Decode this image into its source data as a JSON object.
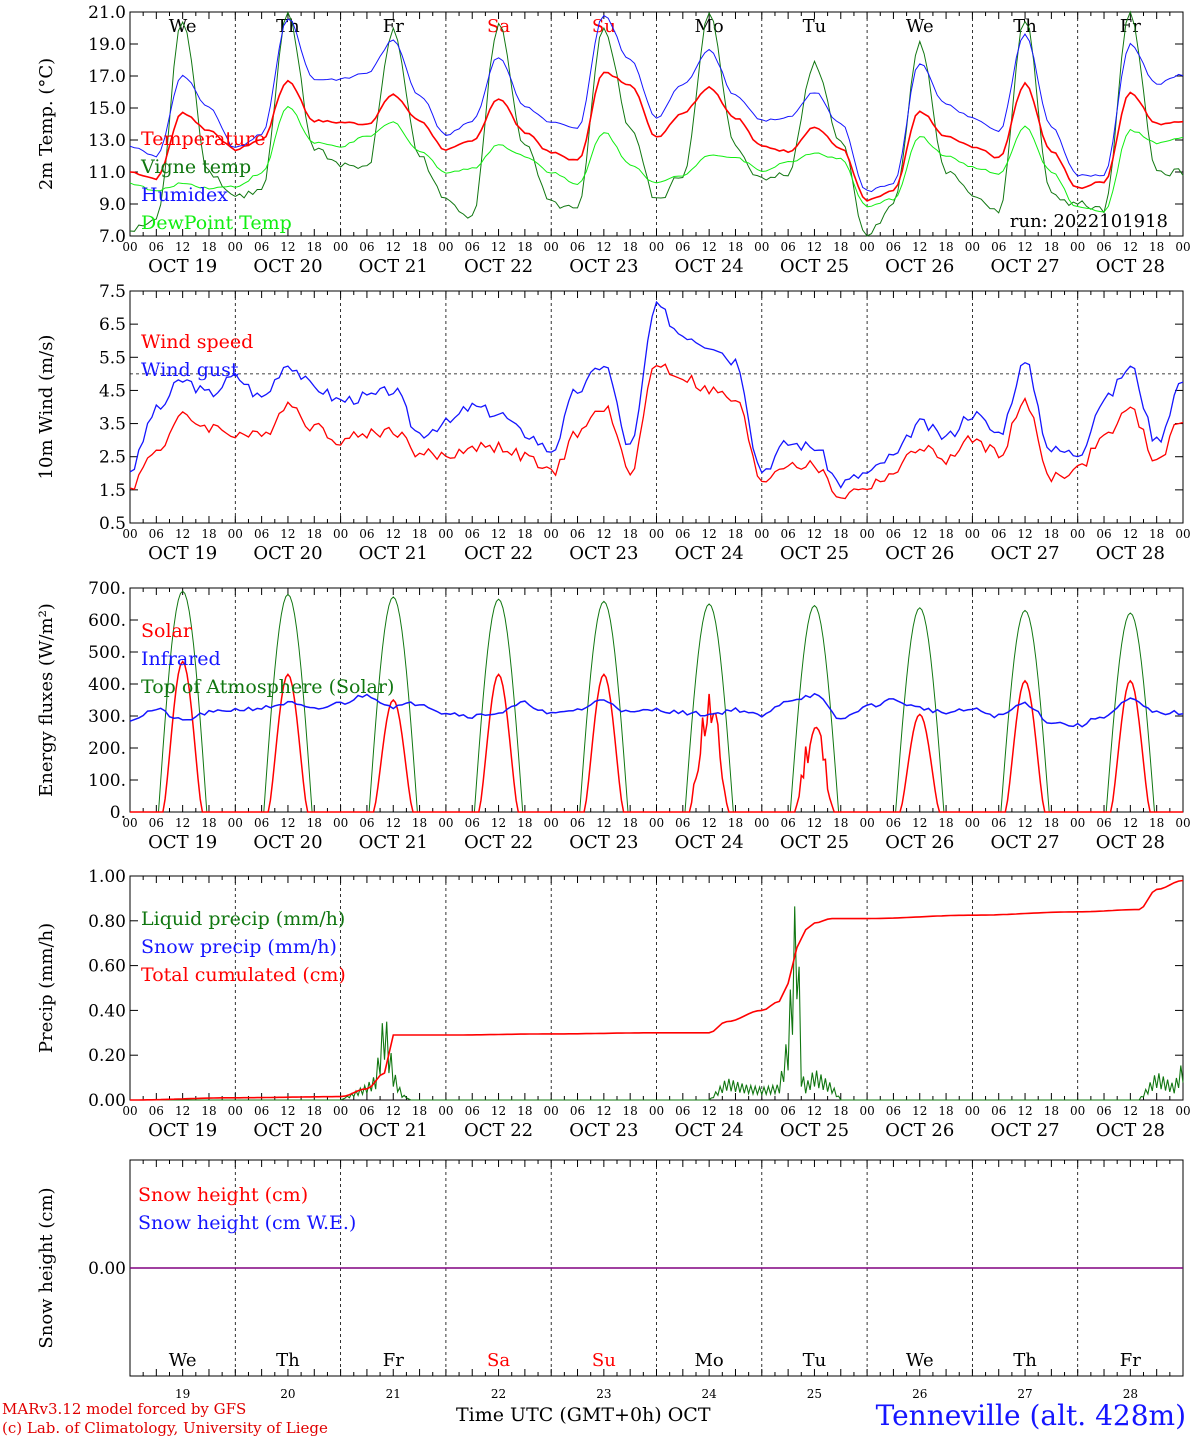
{
  "days": {
    "names": [
      "We",
      "Th",
      "Fr",
      "Sa",
      "Su",
      "Mo",
      "Tu",
      "We",
      "Th",
      "Fr"
    ],
    "weekend_flags": [
      false,
      false,
      false,
      true,
      true,
      false,
      false,
      false,
      false,
      false
    ],
    "dates": [
      "OCT 19",
      "OCT 20",
      "OCT 21",
      "OCT 22",
      "OCT 23",
      "OCT 24",
      "OCT 25",
      "OCT 26",
      "OCT 27",
      "OCT 28"
    ],
    "day_numbers": [
      "19",
      "20",
      "21",
      "22",
      "23",
      "24",
      "25",
      "26",
      "27",
      "28"
    ],
    "hour_ticks": [
      "00",
      "06",
      "12",
      "18"
    ],
    "final_tick": "00"
  },
  "colors": {
    "red": "#ff0000",
    "darkgreen": "#117711",
    "blue": "#1515ff",
    "lightgreen": "#11ee11",
    "purple": "#800080"
  },
  "footer": {
    "left_line1": "MARv3.12 model forced by GFS",
    "left_line2": "(c) Lab. of Climatology, University of Liege",
    "center": "Time UTC (GMT+0h) OCT",
    "right": "Tenneville (alt. 428m)"
  },
  "chart_data": [
    {
      "type": "line",
      "ylabel": "2m Temp. (°C)",
      "ylim": [
        7,
        21
      ],
      "yticks": [
        "7.0",
        "9.0",
        "11.0",
        "13.0",
        "15.0",
        "17.0",
        "19.0",
        "21.0"
      ],
      "annotation": "run: 2022101918",
      "x_unit": "hours since OCT 19 00 UTC",
      "series": [
        {
          "name": "Temperature",
          "color": "red",
          "x": [
            0,
            6,
            12,
            18,
            24,
            30,
            36,
            42,
            48,
            54,
            60,
            66,
            72,
            78,
            84,
            90,
            96,
            102,
            108,
            114,
            120,
            126,
            132,
            138,
            144,
            150,
            156,
            162,
            168,
            174,
            180,
            186,
            192,
            198,
            204,
            210,
            216,
            222,
            228,
            234,
            240
          ],
          "y": [
            11.0,
            10.6,
            14.7,
            13.6,
            12.4,
            13.0,
            16.7,
            14.2,
            14.1,
            14.0,
            15.8,
            14.2,
            12.4,
            12.9,
            15.6,
            13.5,
            12.2,
            11.7,
            17.2,
            16.5,
            13.2,
            14.7,
            16.3,
            14.4,
            12.6,
            12.3,
            13.8,
            12.5,
            9.2,
            9.8,
            14.8,
            13.2,
            12.6,
            11.9,
            16.5,
            12.3,
            10.0,
            10.4,
            16.0,
            14.0,
            14.2
          ]
        },
        {
          "name": "Vigne temp",
          "color": "darkgreen",
          "x": [
            0,
            6,
            12,
            18,
            24,
            30,
            36,
            42,
            48,
            54,
            60,
            66,
            72,
            78,
            84,
            90,
            96,
            102,
            108,
            114,
            120,
            126,
            132,
            138,
            144,
            150,
            156,
            162,
            168,
            174,
            180,
            186,
            192,
            198,
            204,
            210,
            216,
            222,
            228,
            234,
            240
          ],
          "y": [
            7.3,
            8.0,
            20.5,
            11.0,
            9.5,
            9.8,
            20.8,
            12.5,
            11.5,
            11.2,
            19.8,
            12.0,
            9.2,
            8.3,
            20.2,
            12.6,
            9.0,
            8.6,
            20.0,
            13.8,
            9.2,
            10.8,
            20.8,
            12.5,
            10.5,
            11.0,
            17.8,
            13.0,
            7.0,
            9.0,
            19.0,
            11.0,
            9.6,
            8.6,
            20.5,
            9.5,
            9.0,
            8.6,
            21.0,
            11.0,
            11.0
          ]
        },
        {
          "name": "Humidex",
          "color": "blue",
          "x": [
            0,
            6,
            12,
            18,
            24,
            30,
            36,
            42,
            48,
            54,
            60,
            66,
            72,
            78,
            84,
            90,
            96,
            102,
            108,
            114,
            120,
            126,
            132,
            138,
            144,
            150,
            156,
            162,
            168,
            174,
            180,
            186,
            192,
            198,
            204,
            210,
            216,
            222,
            228,
            234,
            240
          ],
          "y": [
            12.6,
            12.0,
            17.0,
            15.0,
            12.5,
            13.3,
            20.6,
            16.8,
            16.8,
            17.2,
            19.2,
            15.8,
            13.3,
            14.2,
            18.2,
            15.1,
            14.1,
            13.7,
            20.8,
            18.0,
            14.4,
            16.5,
            18.6,
            15.8,
            14.2,
            14.4,
            16.0,
            14.0,
            9.8,
            10.3,
            17.8,
            15.2,
            14.4,
            13.5,
            19.6,
            13.8,
            10.8,
            10.8,
            19.0,
            16.5,
            17.1
          ]
        },
        {
          "name": "DewPoint Temp",
          "color": "lightgreen",
          "x": [
            0,
            6,
            12,
            18,
            24,
            30,
            36,
            42,
            48,
            54,
            60,
            66,
            72,
            78,
            84,
            90,
            96,
            102,
            108,
            114,
            120,
            126,
            132,
            138,
            144,
            150,
            156,
            162,
            168,
            174,
            180,
            186,
            192,
            198,
            204,
            210,
            216,
            222,
            228,
            234,
            240
          ],
          "y": [
            10.3,
            9.8,
            10.3,
            10.0,
            10.1,
            10.9,
            15.1,
            12.8,
            12.6,
            13.2,
            14.1,
            12.3,
            11.0,
            11.2,
            12.7,
            12.0,
            11.0,
            10.2,
            13.5,
            11.5,
            10.3,
            10.8,
            12.1,
            11.9,
            11.1,
            11.6,
            12.2,
            11.8,
            8.8,
            9.3,
            13.2,
            12.0,
            11.3,
            10.9,
            13.8,
            11.0,
            8.8,
            8.5,
            13.6,
            12.8,
            13.1
          ]
        }
      ]
    },
    {
      "type": "line",
      "ylabel": "10m Wind (m/s)",
      "ylim": [
        0.5,
        7.5
      ],
      "yticks": [
        "0.5",
        "1.5",
        "2.5",
        "3.5",
        "4.5",
        "5.5",
        "6.5",
        "7.5"
      ],
      "reference_line": 5.0,
      "x_unit": "hours since OCT 19 00 UTC",
      "series": [
        {
          "name": "Wind speed",
          "color": "red",
          "x": [
            0,
            6,
            12,
            18,
            24,
            30,
            36,
            42,
            48,
            54,
            60,
            66,
            72,
            78,
            84,
            90,
            96,
            102,
            108,
            114,
            120,
            126,
            132,
            138,
            144,
            150,
            156,
            162,
            168,
            174,
            180,
            186,
            192,
            198,
            204,
            210,
            216,
            222,
            228,
            234,
            240
          ],
          "y": [
            1.6,
            2.7,
            3.7,
            3.4,
            3.2,
            3.1,
            4.1,
            3.4,
            3.0,
            3.2,
            3.3,
            2.6,
            2.5,
            2.8,
            2.8,
            2.5,
            2.0,
            3.2,
            4.0,
            2.1,
            5.3,
            4.9,
            4.5,
            4.2,
            1.8,
            2.3,
            2.2,
            1.3,
            1.6,
            2.0,
            2.8,
            2.4,
            3.0,
            2.6,
            4.1,
            1.9,
            2.1,
            3.1,
            3.9,
            2.4,
            3.6
          ]
        },
        {
          "name": "Wind gust",
          "color": "blue",
          "x": [
            0,
            6,
            12,
            18,
            24,
            30,
            36,
            42,
            48,
            54,
            60,
            66,
            72,
            78,
            84,
            90,
            96,
            102,
            108,
            114,
            120,
            126,
            132,
            138,
            144,
            150,
            156,
            162,
            168,
            174,
            180,
            186,
            192,
            198,
            204,
            210,
            216,
            222,
            228,
            234,
            240
          ],
          "y": [
            2.1,
            3.9,
            4.8,
            4.4,
            4.9,
            4.3,
            5.3,
            4.6,
            4.2,
            4.3,
            4.5,
            3.2,
            3.5,
            4.0,
            3.8,
            3.2,
            2.7,
            4.5,
            5.3,
            2.8,
            7.0,
            6.2,
            5.9,
            5.4,
            2.1,
            2.9,
            2.8,
            1.7,
            2.0,
            2.5,
            3.5,
            3.1,
            3.8,
            3.2,
            5.3,
            2.7,
            2.6,
            4.2,
            5.2,
            3.0,
            4.8
          ]
        }
      ]
    },
    {
      "type": "line",
      "ylabel": "Energy fluxes (W/m²)",
      "ylim": [
        0,
        700
      ],
      "yticks": [
        "0.",
        "100.",
        "200.",
        "300.",
        "400.",
        "500.",
        "600.",
        "700."
      ],
      "x_unit": "hours since OCT 19 00 UTC",
      "solar_peaks": [
        470,
        430,
        350,
        430,
        430,
        405,
        330,
        305,
        410,
        410
      ],
      "toa_peaks": [
        690,
        680,
        672,
        665,
        658,
        650,
        645,
        638,
        630,
        622
      ],
      "series": [
        {
          "name": "Solar",
          "color": "red"
        },
        {
          "name": "Infrared",
          "color": "blue",
          "x": [
            0,
            6,
            12,
            18,
            24,
            30,
            36,
            42,
            48,
            54,
            60,
            66,
            72,
            78,
            84,
            90,
            96,
            102,
            108,
            114,
            120,
            126,
            132,
            138,
            144,
            150,
            156,
            162,
            168,
            174,
            180,
            186,
            192,
            198,
            204,
            210,
            216,
            222,
            228,
            234,
            240
          ],
          "y": [
            290,
            320,
            285,
            310,
            320,
            325,
            340,
            320,
            340,
            365,
            330,
            340,
            310,
            300,
            310,
            340,
            305,
            320,
            350,
            310,
            320,
            310,
            305,
            320,
            300,
            350,
            365,
            290,
            330,
            350,
            325,
            310,
            320,
            300,
            340,
            280,
            270,
            300,
            350,
            310,
            310
          ]
        },
        {
          "name": "Top of Atmosphere (Solar)",
          "color": "darkgreen"
        }
      ]
    },
    {
      "type": "line",
      "ylabel": "Precip (mm/h)",
      "ylim": [
        0,
        1.0
      ],
      "yticks": [
        "0.00",
        "0.20",
        "0.40",
        "0.60",
        "0.80",
        "1.00"
      ],
      "x_unit": "hours since OCT 19 00 UTC",
      "series": [
        {
          "name": "Liquid precip (mm/h)",
          "color": "darkgreen",
          "x": [
            0,
            48,
            54,
            56,
            58,
            60,
            62,
            64,
            66,
            120,
            132,
            136,
            140,
            144,
            148,
            150,
            152,
            153,
            154,
            156,
            160,
            162,
            230,
            234,
            238,
            240
          ],
          "y": [
            0,
            0,
            0.05,
            0.08,
            0.3,
            0.1,
            0.02,
            0,
            0,
            0,
            0,
            0.07,
            0.05,
            0.04,
            0.05,
            0.22,
            0.75,
            0.1,
            0.05,
            0.1,
            0.05,
            0,
            0,
            0.09,
            0.05,
            0.13
          ]
        },
        {
          "name": "Snow precip (mm/h)",
          "color": "blue"
        },
        {
          "name": "Total cumulated (cm)",
          "color": "red",
          "x": [
            0,
            24,
            48,
            54,
            58,
            60,
            72,
            96,
            120,
            132,
            136,
            144,
            148,
            150,
            152,
            154,
            156,
            160,
            168,
            192,
            216,
            230,
            234,
            240
          ],
          "y": [
            0,
            0.01,
            0.015,
            0.05,
            0.12,
            0.29,
            0.29,
            0.295,
            0.3,
            0.3,
            0.35,
            0.4,
            0.44,
            0.52,
            0.68,
            0.76,
            0.79,
            0.81,
            0.81,
            0.825,
            0.84,
            0.85,
            0.94,
            0.98
          ]
        }
      ]
    },
    {
      "type": "line",
      "ylabel": "Snow height (cm)",
      "yticks": [
        "0.00"
      ],
      "x_unit": "hours since OCT 19 00 UTC",
      "series": [
        {
          "name": "Snow height (cm)",
          "color": "red",
          "x": [
            0,
            240
          ],
          "y": [
            0,
            0
          ]
        },
        {
          "name": "Snow height (cm W.E.)",
          "color": "blue",
          "x": [
            0,
            240
          ],
          "y": [
            0,
            0
          ]
        }
      ]
    }
  ]
}
